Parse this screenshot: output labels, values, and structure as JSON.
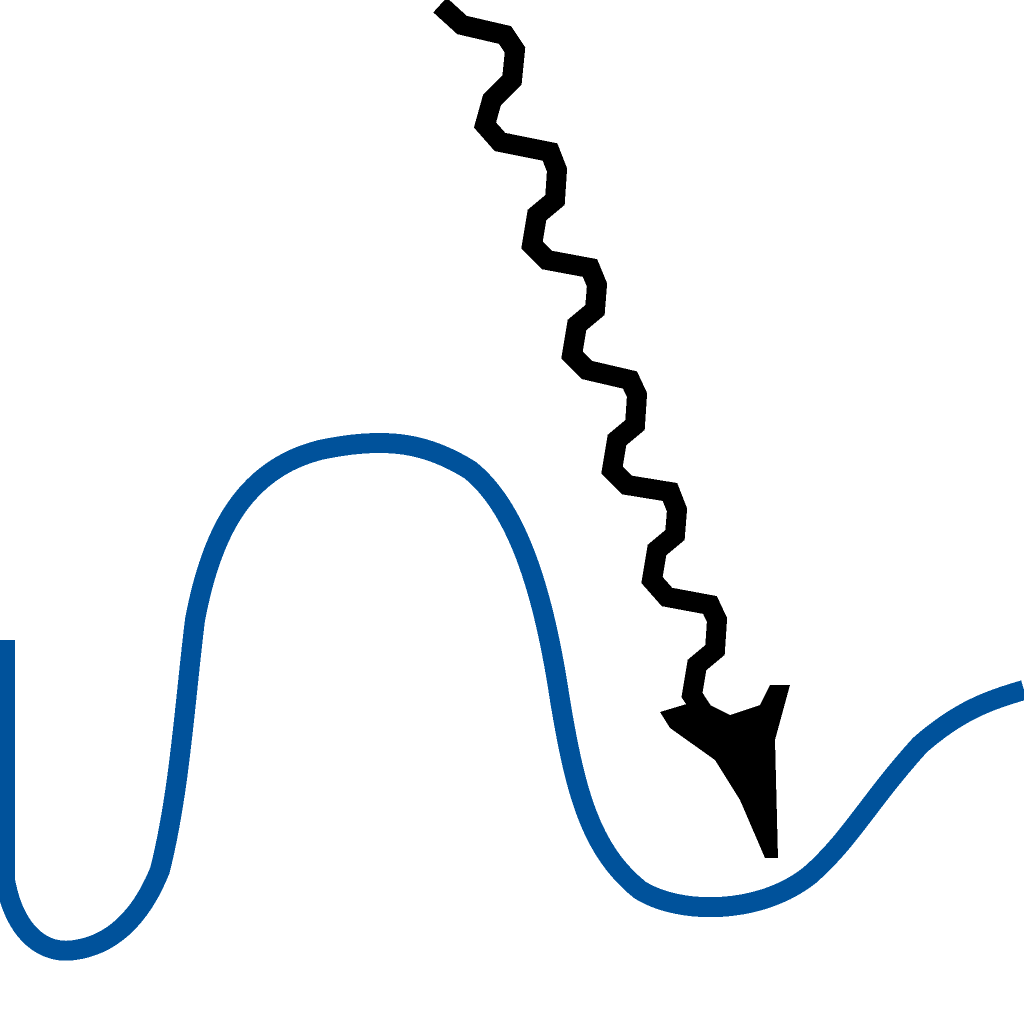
{
  "diagram": {
    "background_color": "#ffffff",
    "wave": {
      "color": "#00529b",
      "description_icon": "wave-curve"
    },
    "photon": {
      "color": "#000000",
      "description_icon": "wavy-arrow-icon"
    }
  }
}
